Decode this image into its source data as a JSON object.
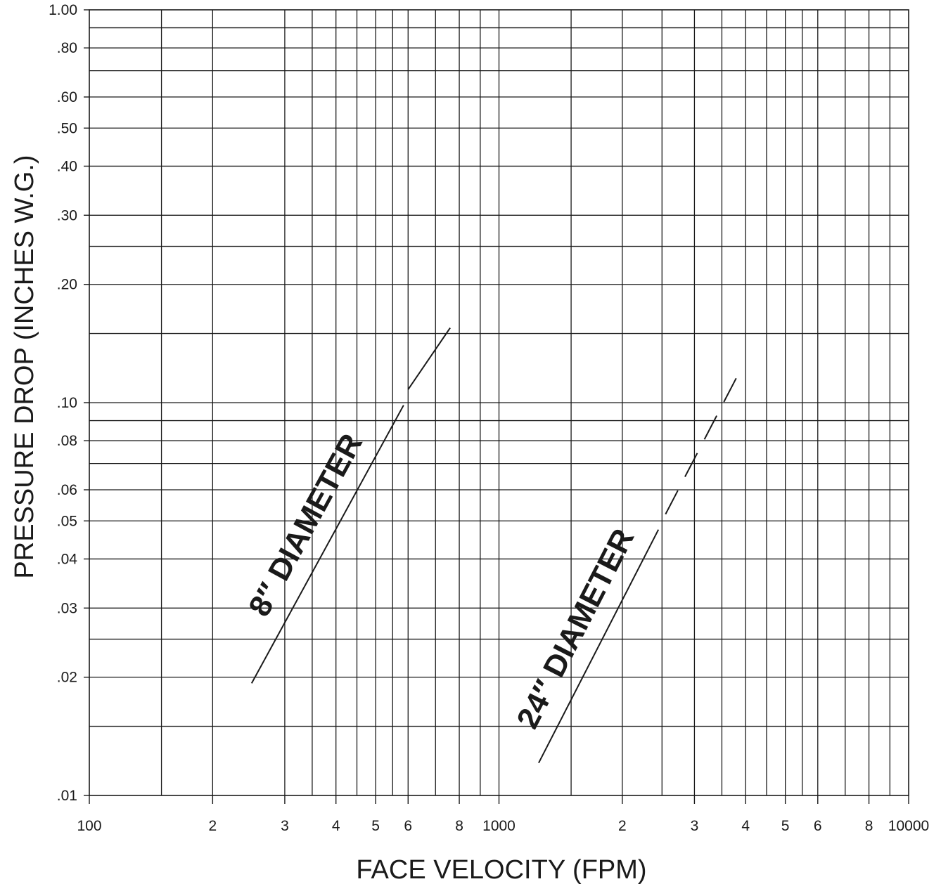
{
  "chart_data": {
    "type": "line",
    "title": "",
    "xlabel": "FACE VELOCITY (FPM)",
    "ylabel": "PRESSURE DROP (INCHES W.G.)",
    "xscale": "log",
    "yscale": "log",
    "xlim": [
      100,
      10000
    ],
    "ylim": [
      0.01,
      1.0
    ],
    "grid": true,
    "x_tick_labels": [
      {
        "value": 100,
        "label": "100"
      },
      {
        "value": 200,
        "label": "2"
      },
      {
        "value": 300,
        "label": "3"
      },
      {
        "value": 400,
        "label": "4"
      },
      {
        "value": 500,
        "label": "5"
      },
      {
        "value": 600,
        "label": "6"
      },
      {
        "value": 800,
        "label": "8"
      },
      {
        "value": 1000,
        "label": "1000"
      },
      {
        "value": 2000,
        "label": "2"
      },
      {
        "value": 3000,
        "label": "3"
      },
      {
        "value": 4000,
        "label": "4"
      },
      {
        "value": 5000,
        "label": "5"
      },
      {
        "value": 6000,
        "label": "6"
      },
      {
        "value": 8000,
        "label": "8"
      },
      {
        "value": 10000,
        "label": "10000"
      }
    ],
    "y_tick_labels": [
      {
        "value": 1.0,
        "label": "1.00"
      },
      {
        "value": 0.8,
        "label": ".80"
      },
      {
        "value": 0.6,
        "label": ".60"
      },
      {
        "value": 0.5,
        "label": ".50"
      },
      {
        "value": 0.4,
        "label": ".40"
      },
      {
        "value": 0.3,
        "label": ".30"
      },
      {
        "value": 0.2,
        "label": ".20"
      },
      {
        "value": 0.1,
        "label": ".10"
      },
      {
        "value": 0.08,
        "label": ".08"
      },
      {
        "value": 0.06,
        "label": ".06"
      },
      {
        "value": 0.05,
        "label": ".05"
      },
      {
        "value": 0.04,
        "label": ".04"
      },
      {
        "value": 0.03,
        "label": ".03"
      },
      {
        "value": 0.02,
        "label": ".02"
      },
      {
        "value": 0.01,
        "label": ".01"
      }
    ],
    "x_gridlines": [
      150,
      200,
      300,
      350,
      400,
      450,
      500,
      550,
      600,
      700,
      800,
      900,
      1000,
      1500,
      2000,
      2500,
      3000,
      3500,
      4000,
      4500,
      5000,
      5500,
      6000,
      7000,
      8000,
      9000
    ],
    "y_gridlines": [
      0.015,
      0.02,
      0.025,
      0.03,
      0.04,
      0.05,
      0.06,
      0.07,
      0.08,
      0.09,
      0.1,
      0.15,
      0.2,
      0.25,
      0.3,
      0.4,
      0.5,
      0.6,
      0.7,
      0.8,
      0.9
    ],
    "series": [
      {
        "name": "8″ DIAMETER",
        "solid": [
          [
            249,
            0.0193
          ],
          [
            585,
            0.0985
          ]
        ],
        "dashed": [
          [
            600,
            0.108
          ],
          [
            760,
            0.155
          ]
        ]
      },
      {
        "name": "24″ DIAMETER",
        "solid": [
          [
            1250,
            0.0121
          ],
          [
            2450,
            0.0475
          ]
        ],
        "dashed": [
          [
            2550,
            0.052
          ],
          [
            3900,
            0.122
          ]
        ]
      }
    ]
  }
}
